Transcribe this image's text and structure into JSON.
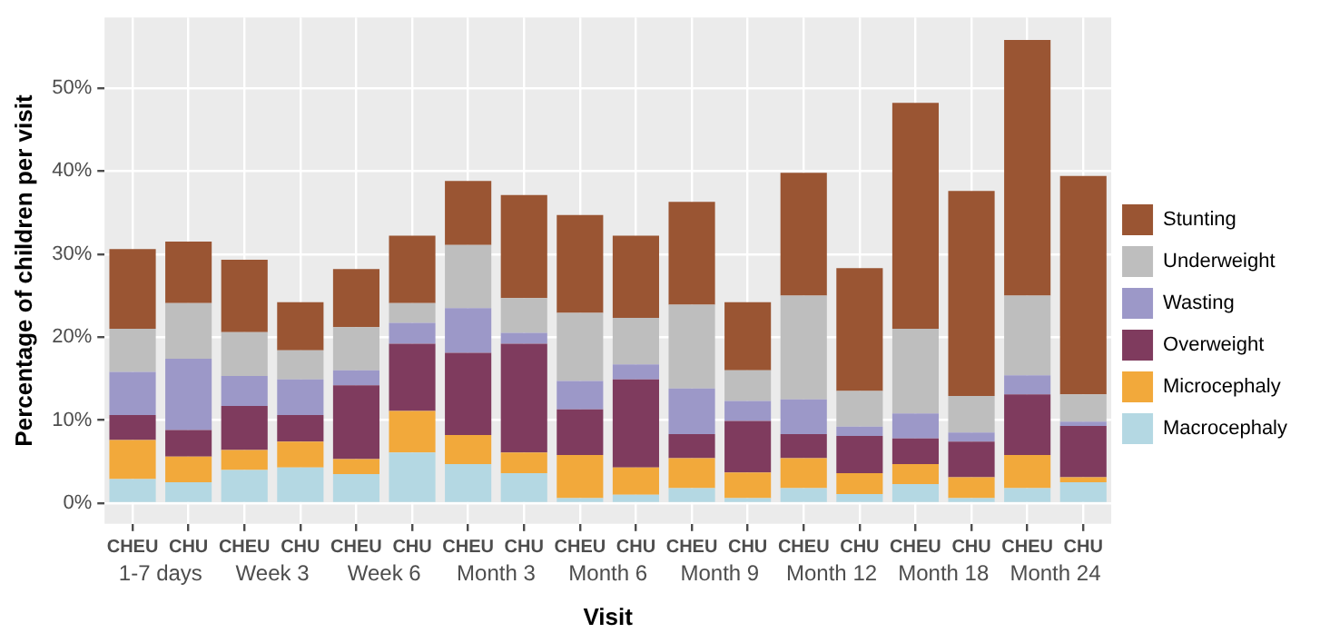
{
  "chart_data": {
    "type": "bar",
    "stacked": true,
    "xlabel": "Visit",
    "ylabel": "Percentage of children per visit",
    "categories": [
      "CHEU",
      "CHU",
      "CHEU",
      "CHU",
      "CHEU",
      "CHU",
      "CHEU",
      "CHU",
      "CHEU",
      "CHU",
      "CHEU",
      "CHU",
      "CHEU",
      "CHU",
      "CHEU",
      "CHU",
      "CHEU",
      "CHU"
    ],
    "annotations": [
      "1-7 days",
      "Week 3",
      "Week 6",
      "Month 3",
      "Month 6",
      "Month 9",
      "Month 12",
      "Month 18",
      "Month 24"
    ],
    "series": [
      {
        "name": "Macrocephaly",
        "color": "#b4d8e3",
        "values": [
          2.9,
          2.5,
          4.0,
          4.3,
          3.5,
          6.1,
          4.7,
          3.6,
          0.6,
          1.0,
          1.8,
          0.6,
          1.8,
          1.1,
          2.3,
          0.6,
          1.8,
          2.5
        ]
      },
      {
        "name": "Microcephaly",
        "color": "#f2a93b",
        "values": [
          4.7,
          3.1,
          2.4,
          3.1,
          1.8,
          5.0,
          3.5,
          2.5,
          5.2,
          3.3,
          3.6,
          3.1,
          3.6,
          2.5,
          2.4,
          2.5,
          4.0,
          0.6
        ]
      },
      {
        "name": "Overweight",
        "color": "#7f3b5e",
        "values": [
          3.0,
          3.2,
          5.3,
          3.2,
          8.9,
          8.1,
          9.9,
          13.1,
          5.5,
          10.6,
          2.9,
          6.2,
          2.9,
          4.5,
          3.1,
          4.3,
          7.3,
          6.2
        ]
      },
      {
        "name": "Wasting",
        "color": "#9c98c8",
        "values": [
          5.2,
          8.6,
          3.6,
          4.3,
          1.8,
          2.5,
          5.4,
          1.3,
          3.4,
          1.8,
          5.5,
          2.4,
          4.2,
          1.1,
          3.0,
          1.1,
          2.3,
          0.5
        ]
      },
      {
        "name": "Underweight",
        "color": "#bebebe",
        "values": [
          5.2,
          6.7,
          5.3,
          3.5,
          5.2,
          2.4,
          7.6,
          4.2,
          8.2,
          5.6,
          10.1,
          3.7,
          12.5,
          4.3,
          10.2,
          4.4,
          9.6,
          3.3
        ]
      },
      {
        "name": "Stunting",
        "color": "#9a5533",
        "values": [
          9.6,
          7.4,
          8.7,
          5.8,
          7.0,
          8.1,
          7.7,
          12.4,
          11.8,
          9.9,
          12.4,
          8.2,
          14.8,
          14.8,
          27.2,
          24.7,
          30.8,
          26.3
        ]
      }
    ],
    "ylim": [
      -2.5,
      58.5
    ],
    "yticks": [
      {
        "value": 0,
        "label": "0%"
      },
      {
        "value": 10,
        "label": "10%"
      },
      {
        "value": 20,
        "label": "20%"
      },
      {
        "value": 30,
        "label": "30%"
      },
      {
        "value": 40,
        "label": "40%"
      },
      {
        "value": 50,
        "label": "50%"
      }
    ],
    "grid": true,
    "legend": "right"
  }
}
